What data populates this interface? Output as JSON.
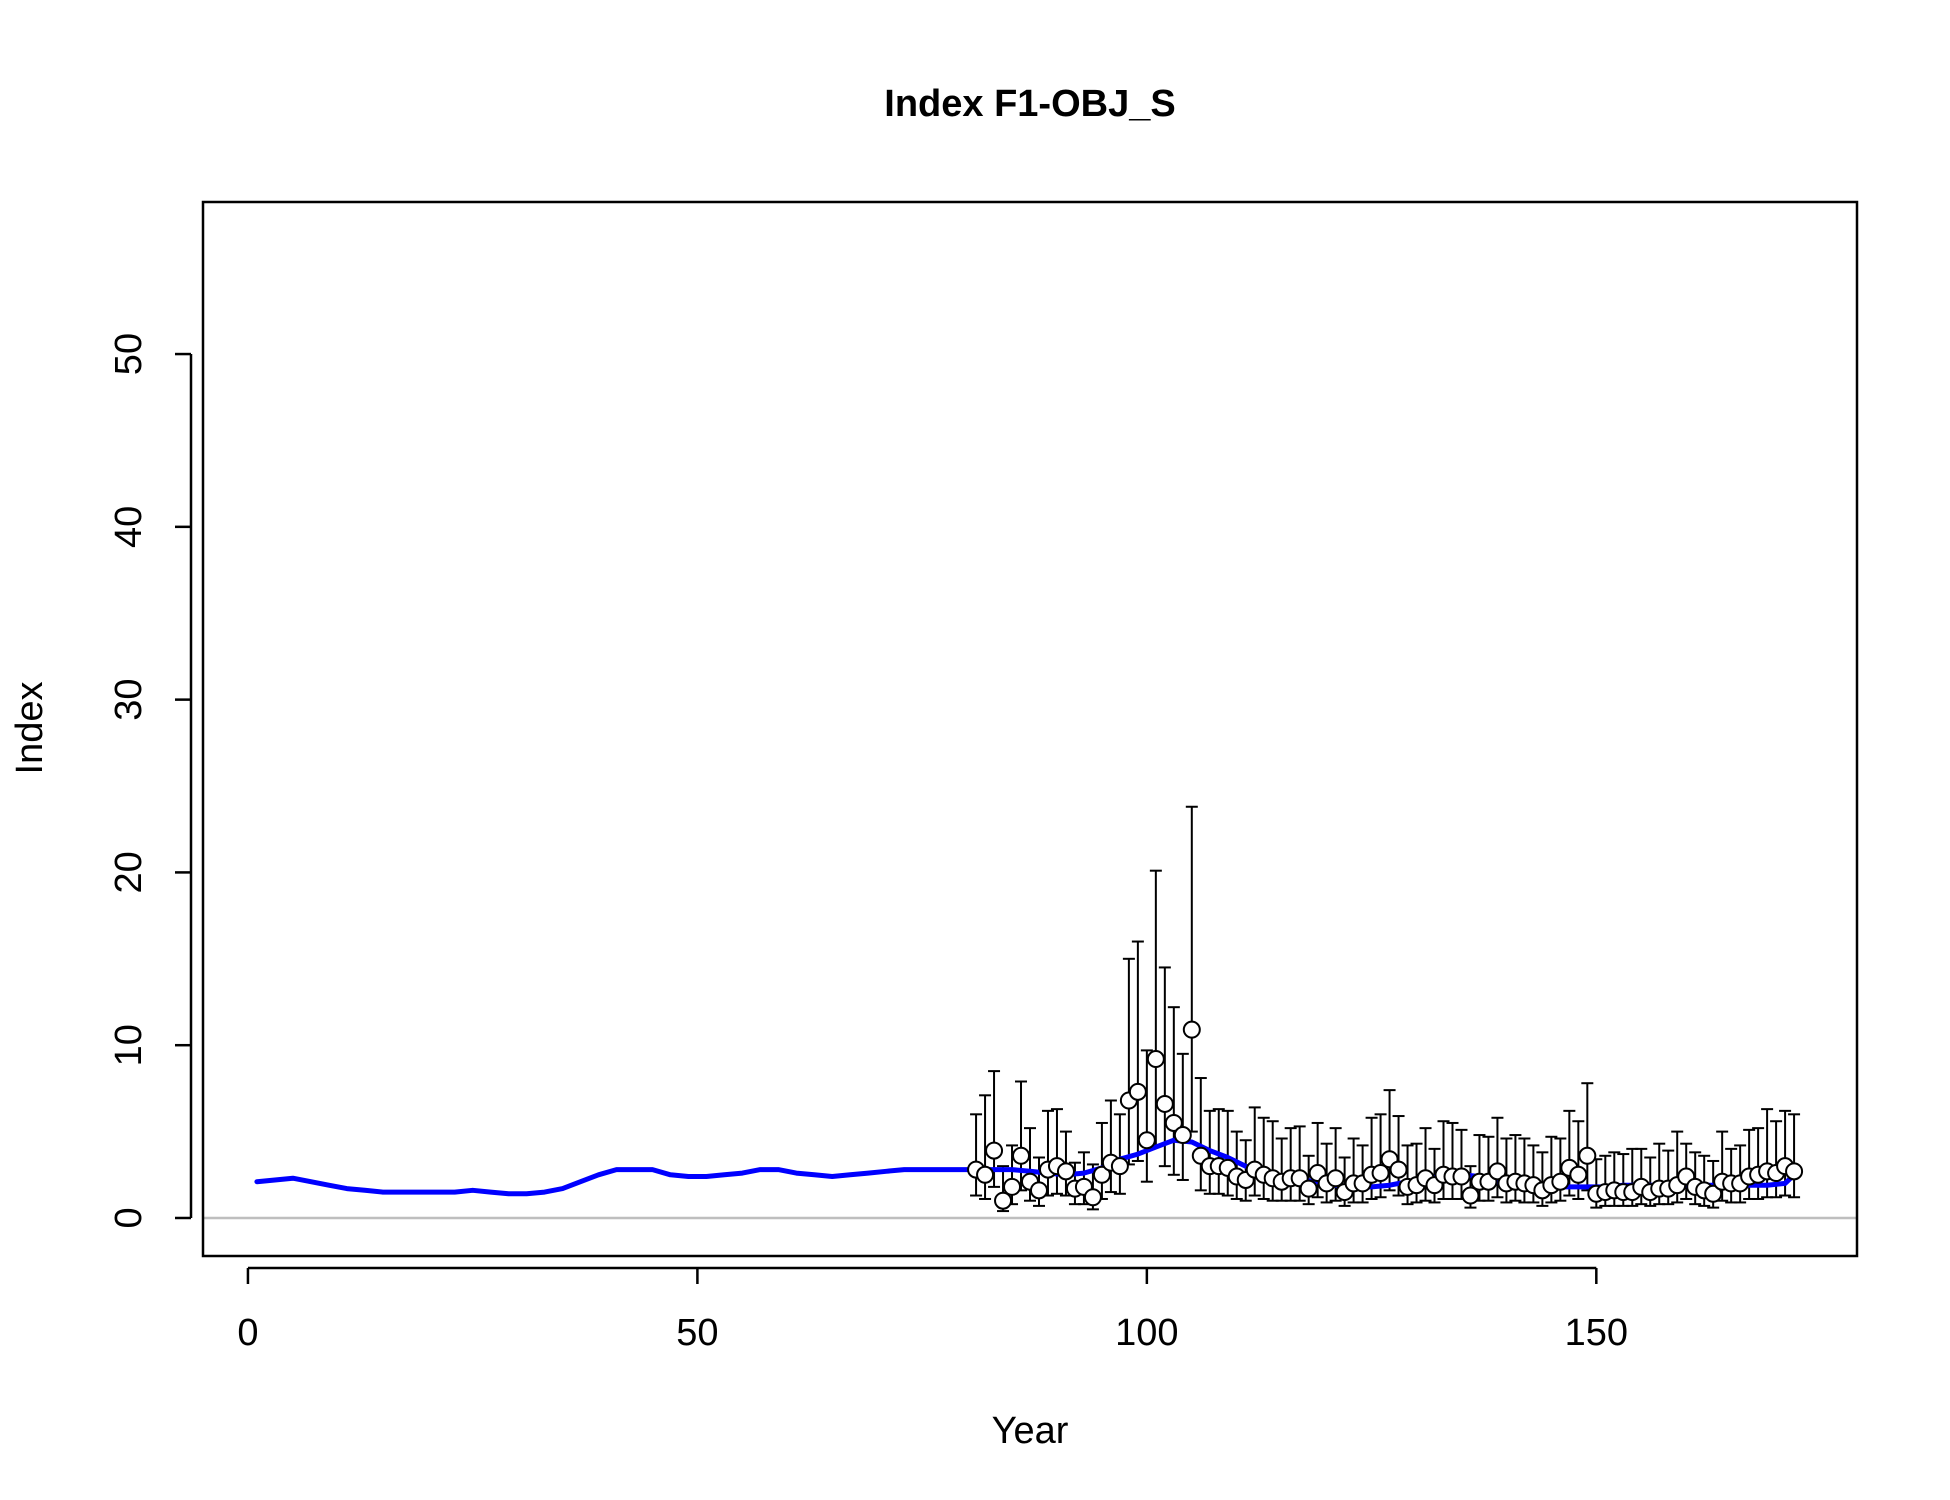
{
  "chart_data": {
    "type": "line",
    "title": "Index F1-OBJ_S",
    "xlabel": "Year",
    "ylabel": "Index",
    "xlim": [
      -5,
      179
    ],
    "ylim": [
      -2.2,
      58.8
    ],
    "x_ticks": [
      0,
      50,
      100,
      150
    ],
    "y_ticks": [
      0,
      10,
      20,
      30,
      40,
      50
    ],
    "grid": false,
    "legend": "none",
    "reference_line": {
      "y": 0,
      "color": "#bebebe"
    },
    "colors": {
      "fit_line": "#0000ff",
      "observed_points": "#ffffff",
      "error_bars": "#000000"
    },
    "series": [
      {
        "kind": "line",
        "x": [
          1,
          3,
          5,
          7,
          9,
          11,
          13,
          15,
          17,
          19,
          21,
          23,
          25,
          27,
          29,
          31,
          33,
          35,
          37,
          39,
          41,
          43,
          45,
          47,
          49,
          51,
          53,
          55,
          57,
          59,
          61,
          63,
          65,
          67,
          69,
          71,
          73,
          75,
          77,
          79,
          81,
          83,
          85,
          87,
          89,
          91,
          93,
          95,
          97,
          99,
          101,
          103,
          105,
          107,
          109,
          111,
          113,
          115,
          117,
          119,
          121,
          123,
          125,
          127,
          129,
          131,
          133,
          135,
          137,
          139,
          141,
          143,
          145,
          147,
          149,
          151,
          153,
          155,
          157,
          159,
          161,
          163,
          165,
          167,
          169,
          171,
          172
        ],
        "y": [
          2.1,
          2.2,
          2.3,
          2.1,
          1.9,
          1.7,
          1.6,
          1.5,
          1.5,
          1.5,
          1.5,
          1.5,
          1.6,
          1.5,
          1.4,
          1.4,
          1.5,
          1.7,
          2.1,
          2.5,
          2.8,
          2.8,
          2.8,
          2.5,
          2.4,
          2.4,
          2.5,
          2.6,
          2.8,
          2.8,
          2.6,
          2.5,
          2.4,
          2.5,
          2.6,
          2.7,
          2.8,
          2.8,
          2.8,
          2.8,
          2.8,
          2.8,
          2.8,
          2.7,
          2.6,
          2.5,
          2.6,
          2.9,
          3.4,
          3.7,
          4.1,
          4.5,
          4.4,
          3.9,
          3.5,
          3.0,
          2.6,
          2.4,
          2.2,
          2.1,
          1.9,
          1.8,
          1.8,
          1.9,
          2.1,
          2.3,
          2.4,
          2.5,
          2.4,
          2.1,
          1.9,
          1.8,
          1.8,
          1.8,
          1.8,
          1.8,
          1.9,
          1.9,
          1.9,
          1.9,
          1.9,
          1.9,
          1.9,
          1.9,
          1.9,
          2.0,
          2.5
        ]
      },
      {
        "kind": "points_with_error_bars",
        "x": [
          81,
          82,
          83,
          84,
          85,
          86,
          87,
          88,
          89,
          90,
          91,
          92,
          93,
          94,
          95,
          96,
          97,
          98,
          99,
          100,
          101,
          102,
          103,
          104,
          105,
          106,
          107,
          108,
          109,
          110,
          111,
          112,
          113,
          114,
          115,
          116,
          117,
          118,
          119,
          120,
          121,
          122,
          123,
          124,
          125,
          126,
          127,
          128,
          129,
          130,
          131,
          132,
          133,
          134,
          135,
          136,
          137,
          138,
          139,
          140,
          141,
          142,
          143,
          144,
          145,
          146,
          147,
          148,
          149,
          150,
          151,
          152,
          153,
          154,
          155,
          156,
          157,
          158,
          159,
          160,
          161,
          162,
          163,
          164,
          165,
          166,
          167,
          168,
          169,
          170,
          171,
          172
        ],
        "y": [
          2.8,
          2.5,
          3.9,
          1.0,
          1.8,
          3.6,
          2.1,
          1.6,
          2.8,
          3.0,
          2.7,
          1.7,
          1.8,
          1.2,
          2.5,
          3.2,
          3.0,
          6.8,
          7.3,
          4.5,
          9.2,
          6.6,
          5.5,
          4.8,
          10.9,
          3.6,
          3.0,
          3.0,
          2.9,
          2.4,
          2.2,
          2.8,
          2.5,
          2.3,
          2.1,
          2.3,
          2.3,
          1.7,
          2.6,
          2.0,
          2.3,
          1.5,
          2.0,
          2.0,
          2.5,
          2.6,
          3.4,
          2.8,
          1.8,
          1.9,
          2.3,
          1.9,
          2.5,
          2.4,
          2.4,
          1.3,
          2.1,
          2.1,
          2.7,
          2.0,
          2.1,
          2.0,
          1.9,
          1.6,
          1.9,
          2.1,
          2.9,
          2.5,
          3.6,
          1.4,
          1.5,
          1.6,
          1.5,
          1.5,
          1.8,
          1.5,
          1.7,
          1.7,
          1.9,
          2.4,
          1.8,
          1.6,
          1.4,
          2.1,
          2.0,
          2.0,
          2.4,
          2.5,
          2.7,
          2.6,
          3.0,
          2.7
        ],
        "upper": [
          6.0,
          7.1,
          8.5,
          3.0,
          4.2,
          7.9,
          5.2,
          3.5,
          6.2,
          6.3,
          5.0,
          3.2,
          3.8,
          3.1,
          5.5,
          6.8,
          6.0,
          15.0,
          16.0,
          9.7,
          20.1,
          14.5,
          12.2,
          9.5,
          23.8,
          8.1,
          6.2,
          6.3,
          6.2,
          5.0,
          4.5,
          6.4,
          5.8,
          5.6,
          4.6,
          5.2,
          5.3,
          3.6,
          5.5,
          4.3,
          5.2,
          3.5,
          4.6,
          4.2,
          5.8,
          6.0,
          7.4,
          5.9,
          4.2,
          4.3,
          5.2,
          4.0,
          5.6,
          5.5,
          5.1,
          3.0,
          4.8,
          4.7,
          5.8,
          4.6,
          4.8,
          4.6,
          4.2,
          3.8,
          4.7,
          4.6,
          6.2,
          5.6,
          7.8,
          3.4,
          3.6,
          3.8,
          3.7,
          4.0,
          4.0,
          3.5,
          4.3,
          3.9,
          5.0,
          4.3,
          3.8,
          3.6,
          3.3,
          5.0,
          4.0,
          4.2,
          5.1,
          5.2,
          6.3,
          5.6,
          6.2,
          6.0
        ],
        "lower": [
          1.3,
          1.1,
          1.8,
          0.4,
          0.8,
          1.6,
          1.0,
          0.7,
          1.3,
          1.4,
          1.3,
          0.8,
          0.8,
          0.5,
          1.1,
          1.5,
          1.4,
          3.1,
          3.3,
          2.1,
          4.2,
          3.0,
          2.5,
          2.2,
          5.0,
          1.6,
          1.4,
          1.4,
          1.3,
          1.1,
          1.0,
          1.3,
          1.1,
          1.0,
          1.0,
          1.0,
          1.0,
          0.8,
          1.2,
          0.9,
          1.0,
          0.7,
          0.9,
          0.9,
          1.1,
          1.2,
          1.6,
          1.3,
          0.8,
          0.9,
          1.0,
          0.9,
          1.1,
          1.1,
          1.1,
          0.6,
          1.0,
          1.0,
          1.2,
          0.9,
          1.0,
          0.9,
          0.9,
          0.7,
          0.9,
          1.0,
          1.3,
          1.1,
          1.6,
          0.6,
          0.7,
          0.7,
          0.7,
          0.7,
          0.8,
          0.7,
          0.8,
          0.8,
          0.9,
          1.1,
          0.8,
          0.7,
          0.6,
          1.0,
          0.9,
          0.9,
          1.1,
          1.1,
          1.2,
          1.2,
          1.3,
          1.2
        ]
      }
    ]
  }
}
